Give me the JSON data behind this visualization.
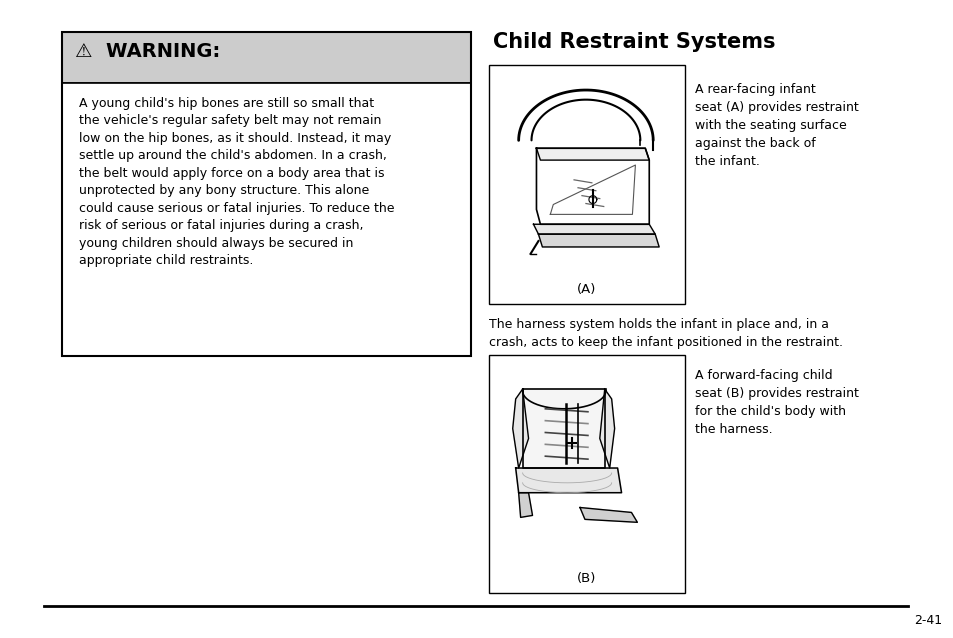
{
  "bg_color": "#ffffff",
  "page_width": 9.54,
  "page_height": 6.38,
  "title": "Child Restraint Systems",
  "title_fontsize": 15,
  "warning_label": "⚠  WARNING:",
  "warning_label_fontsize": 14,
  "warning_header_bg": "#cccccc",
  "warning_border": "#000000",
  "warning_text": "A young child's hip bones are still so small that\nthe vehicle's regular safety belt may not remain\nlow on the hip bones, as it should. Instead, it may\nsettle up around the child's abdomen. In a crash,\nthe belt would apply force on a body area that is\nunprotected by any bony structure. This alone\ncould cause serious or fatal injuries. To reduce the\nrisk of serious or fatal injuries during a crash,\nyoung children should always be secured in\nappropriate child restraints.",
  "warning_text_fontsize": 9.0,
  "text_A": "A rear-facing infant\nseat (A) provides restraint\nwith the seating surface\nagainst the back of\nthe infant.",
  "text_A_fontsize": 9.0,
  "middle_text": "The harness system holds the infant in place and, in a\ncrash, acts to keep the infant positioned in the restraint.",
  "middle_text_fontsize": 9.0,
  "text_B": "A forward-facing child\nseat (B) provides restraint\nfor the child's body with\nthe harness.",
  "text_B_fontsize": 9.0,
  "label_A": "(A)",
  "label_B": "(B)",
  "footer_text": "2-41",
  "footer_fontsize": 9
}
